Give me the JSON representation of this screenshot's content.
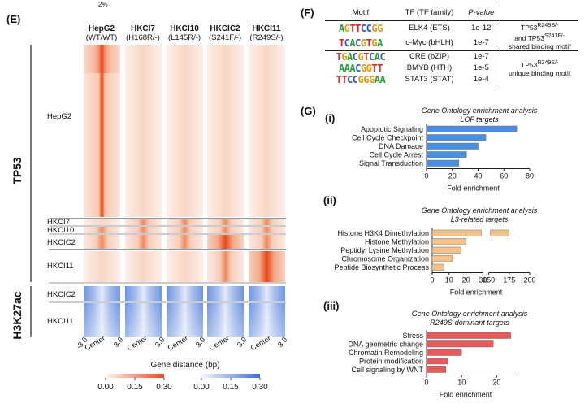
{
  "panel_e": {
    "label": "(E)",
    "top_fragment": "2%",
    "columns": [
      {
        "name": "HepG2",
        "genotype": "(WT/WT)"
      },
      {
        "name": "HKCI7",
        "genotype": "(H168R/-)"
      },
      {
        "name": "HKCI10",
        "genotype": "(L145R/-)"
      },
      {
        "name": "HKCIC2",
        "genotype": "(S241F/-)"
      },
      {
        "name": "HKCI11",
        "genotype": "(R249S/-)"
      }
    ],
    "tp53_label": "TP53",
    "h3k27ac_label": "H3K27ac",
    "tp53_rows": [
      "HepG2",
      "HKCI7",
      "HKCI10",
      "HKCIC2",
      "HKCI11"
    ],
    "h3k27ac_rows": [
      "HKCIC2",
      "HKCI11"
    ],
    "x_ticks": [
      "-3.0",
      "Center",
      "3.0"
    ],
    "x_axis_label": "Gene distance (bp)",
    "colorbar_ticks": [
      "0.00",
      "0.15",
      "0.30"
    ],
    "colors": {
      "tp53_high": "#e8471a",
      "tp53_low": "#fbe4da",
      "h3k27ac_high": "#3a6fd8",
      "h3k27ac_low": "#e6ecfa"
    }
  },
  "panel_f": {
    "label": "(F)",
    "headers": [
      "Motif",
      "TF (TF family)",
      "P-value"
    ],
    "rows": [
      {
        "logo": "AGTTCCGG",
        "tf": "ELK4 (ETS)",
        "p": "1e-12"
      },
      {
        "logo": "TCACGTGA",
        "tf": "c-Myc (bHLH)",
        "p": "1e-7"
      },
      {
        "logo": "TGACGTCAC",
        "tf": "CRE (bZIP)",
        "p": "1e-7"
      },
      {
        "logo": "AAACGGTT",
        "tf": "BMYB (HTH)",
        "p": "1e-5"
      },
      {
        "logo": "TTCCGGGAA",
        "tf": "STAT3 (STAT)",
        "p": "1e-4"
      }
    ],
    "group1_note": {
      "a": "TP53",
      "a_sup": "R249S/-",
      "b": "and TP53",
      "b_sup": "S241F/-",
      "c": "shared binding motif"
    },
    "group2_note": {
      "a": "TP53",
      "a_sup": "R249S/-",
      "c": "unique binding motif"
    }
  },
  "panel_g": {
    "label": "(G)",
    "charts": [
      {
        "roman": "(i)",
        "title_line1": "Gene Ontology enrichment analysis",
        "title_line2": "LOF targets",
        "type": "bar",
        "orientation": "horizontal",
        "color": "#4a90e2",
        "categories": [
          "Apoptotic Signaling",
          "Cell Cycle Checkpoint",
          "DNA Damage",
          "Cell Cycle Arrest",
          "Signal Transduction"
        ],
        "values": [
          70,
          46,
          40,
          31,
          25
        ],
        "xlim": [
          0,
          80
        ],
        "xticks": [
          "0",
          "20",
          "40",
          "60",
          "80"
        ],
        "xlabel": "Fold enrichment"
      },
      {
        "roman": "(ii)",
        "title_line1": "Gene Ontology enrichment analysis",
        "title_line2": "L3-related targets",
        "type": "bar",
        "orientation": "horizontal",
        "axis_break": [
          30,
          150
        ],
        "color": "#f5c38a",
        "categories": [
          "Histone H3K4 Dimethylation",
          "Histone Methylation",
          "Peptidyl Lysine Methylation",
          "Chromosome Organization",
          "Peptide Biosynthetic Process"
        ],
        "values": [
          175,
          20,
          17,
          12,
          7
        ],
        "xlim": [
          0,
          200
        ],
        "xticks": [
          "0",
          "10",
          "20",
          "30",
          "150",
          "175",
          "200"
        ],
        "xlabel": "Fold enrichment"
      },
      {
        "roman": "(iii)",
        "title_line1": "Gene Ontology enrichment analysis",
        "title_line2": "R249S-dominant targets",
        "type": "bar",
        "orientation": "horizontal",
        "color": "#e85a5a",
        "categories": [
          "Stress",
          "DNA geometric change",
          "Chromatin Remodeling",
          "Protein modification",
          "Cell signaling by WNT"
        ],
        "values": [
          24,
          19,
          10,
          6,
          5.5
        ],
        "xlim": [
          0,
          25
        ],
        "xticks": [
          "0",
          "10",
          "20"
        ],
        "xlabel": "Fold enrichment"
      }
    ]
  }
}
